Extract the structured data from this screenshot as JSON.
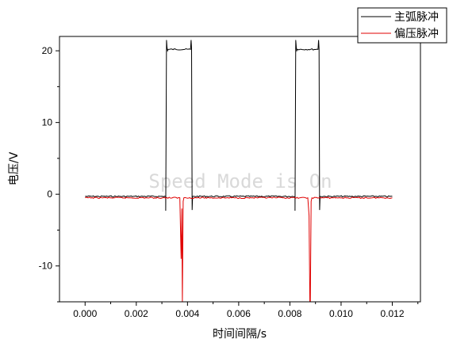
{
  "chart_data": {
    "type": "line",
    "title": "",
    "xlabel": "时间间隔/s",
    "ylabel": "电压/V",
    "xlim": [
      -0.001,
      0.0131
    ],
    "ylim": [
      -15,
      22
    ],
    "xticks": [
      0.0,
      0.002,
      0.004,
      0.006,
      0.008,
      0.01,
      0.012
    ],
    "xtick_labels": [
      "0.000",
      "0.002",
      "0.004",
      "0.006",
      "0.008",
      "0.010",
      "0.012"
    ],
    "yticks": [
      -10,
      0,
      10,
      20
    ],
    "ytick_labels": [
      "-10",
      "0",
      "10",
      "20"
    ],
    "grid": false,
    "legend_position": "top-right",
    "watermark": "Speed Mode is On",
    "series": [
      {
        "name": "主弧脉冲",
        "color": "#000000",
        "x": [
          0.0,
          0.00315,
          0.00315,
          0.00318,
          0.0032,
          0.00322,
          0.00325,
          0.00412,
          0.00414,
          0.00416,
          0.00418,
          0.0042,
          0.0082,
          0.0082,
          0.00823,
          0.00825,
          0.00827,
          0.0083,
          0.0091,
          0.00912,
          0.00914,
          0.00916,
          0.00918,
          0.012
        ],
        "y": [
          -0.3,
          -0.3,
          -2.3,
          21.5,
          20.5,
          20.0,
          20.2,
          20.2,
          21.5,
          20.3,
          -2.2,
          -0.3,
          -0.3,
          -2.3,
          21.5,
          20.5,
          20.0,
          20.2,
          20.2,
          21.5,
          20.3,
          -2.2,
          -0.3,
          -0.3
        ]
      },
      {
        "name": "偏压脉冲",
        "color": "#e00000",
        "x": [
          0.0,
          0.0037,
          0.00375,
          0.00378,
          0.0038,
          0.00383,
          0.00386,
          0.0087,
          0.00875,
          0.00878,
          0.0088,
          0.00883,
          0.00886,
          0.012
        ],
        "y": [
          -0.5,
          -0.5,
          -9.0,
          -2.0,
          -15.0,
          -1.0,
          -0.5,
          -0.5,
          -3.0,
          -15.0,
          -15.0,
          -1.0,
          -0.5,
          -0.5
        ]
      }
    ]
  }
}
